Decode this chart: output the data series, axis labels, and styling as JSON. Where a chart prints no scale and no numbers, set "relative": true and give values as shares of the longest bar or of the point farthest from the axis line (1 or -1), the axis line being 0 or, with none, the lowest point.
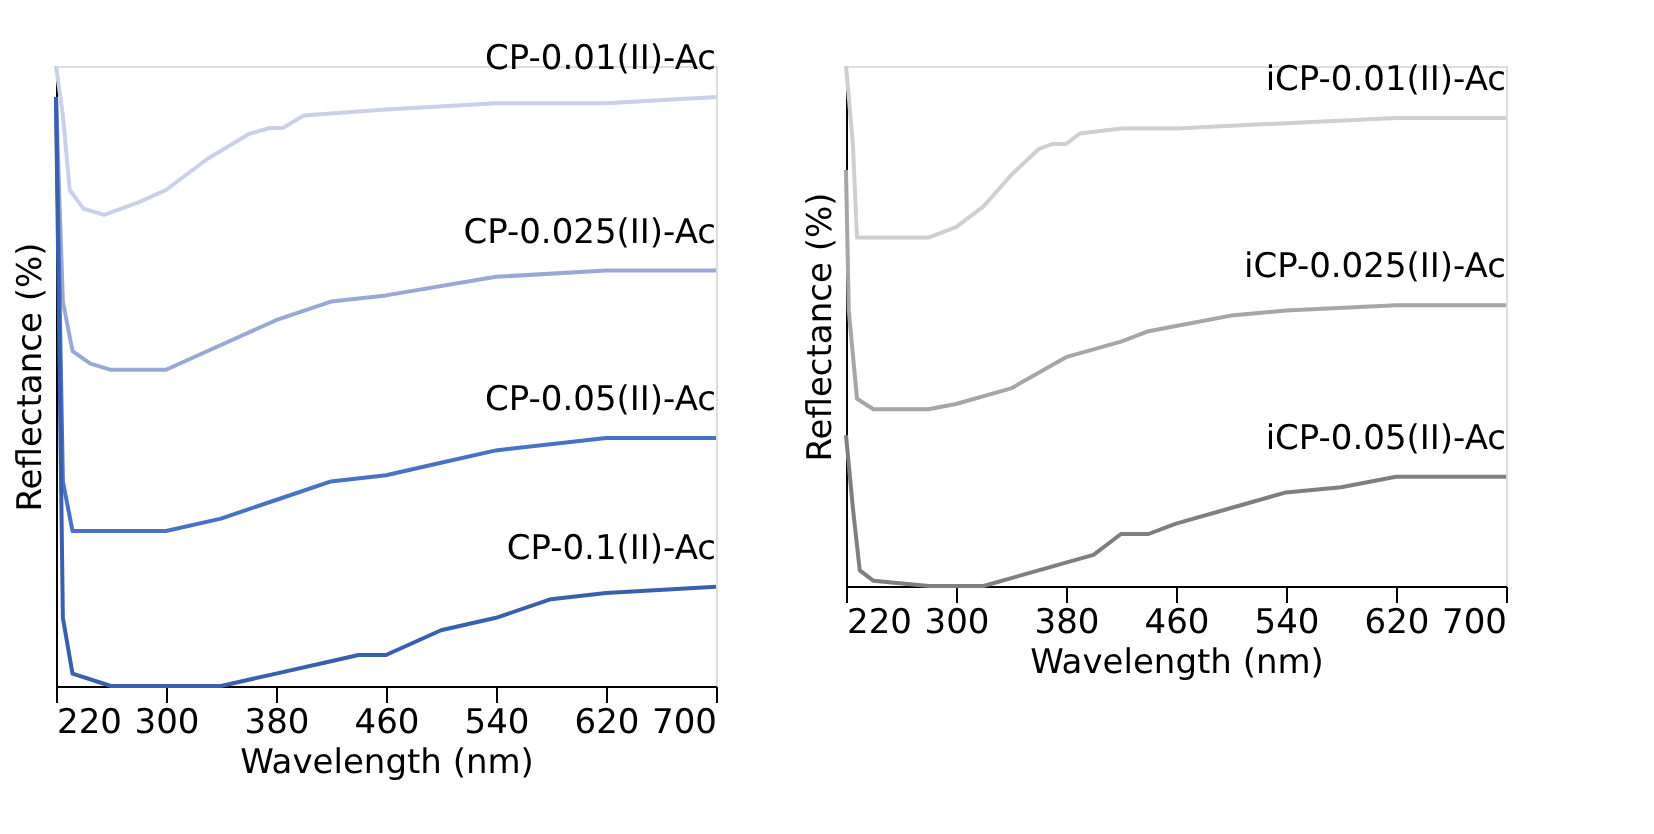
{
  "chart_data": [
    {
      "type": "line",
      "relative": true,
      "xlabel": "Wavelength (nm)",
      "ylabel": "Reflectance (%)",
      "xlim": [
        220,
        700
      ],
      "xticks": [
        220,
        300,
        380,
        460,
        540,
        620,
        700
      ],
      "tick_labels": "x",
      "grid": false,
      "legend": false,
      "line_style": "solid",
      "marker": "none",
      "series": [
        {
          "name": "CP-0.01(II)-Ac",
          "color": "#c9d0e8",
          "x": [
            220,
            225,
            230,
            240,
            255,
            280,
            300,
            330,
            360,
            375,
            385,
            400,
            460,
            540,
            620,
            700
          ],
          "values": [
            1.0,
            0.92,
            0.8,
            0.77,
            0.76,
            0.78,
            0.8,
            0.85,
            0.89,
            0.9,
            0.9,
            0.92,
            0.93,
            0.94,
            0.94,
            0.95
          ]
        },
        {
          "name": "CP-0.025(II)-Ac",
          "color": "#9aa8d6",
          "x": [
            220,
            225,
            232,
            245,
            260,
            300,
            340,
            380,
            420,
            460,
            540,
            620,
            700
          ],
          "values": [
            0.95,
            0.62,
            0.54,
            0.52,
            0.51,
            0.51,
            0.55,
            0.59,
            0.62,
            0.63,
            0.66,
            0.67,
            0.67
          ]
        },
        {
          "name": "CP-0.05(II)-Ac",
          "color": "#4a72c4",
          "x": [
            220,
            225,
            232,
            260,
            300,
            340,
            380,
            420,
            460,
            500,
            540,
            620,
            700
          ],
          "values": [
            0.95,
            0.33,
            0.25,
            0.25,
            0.25,
            0.27,
            0.3,
            0.33,
            0.34,
            0.36,
            0.38,
            0.4,
            0.4
          ]
        },
        {
          "name": "CP-0.1(II)-Ac",
          "color": "#3a5fae",
          "x": [
            220,
            225,
            232,
            260,
            300,
            340,
            380,
            420,
            440,
            460,
            500,
            540,
            580,
            620,
            700
          ],
          "values": [
            0.95,
            0.11,
            0.02,
            0.0,
            0.0,
            0.0,
            0.02,
            0.04,
            0.05,
            0.05,
            0.09,
            0.11,
            0.14,
            0.15,
            0.16
          ]
        }
      ]
    },
    {
      "type": "line",
      "relative": true,
      "xlabel": "Wavelength (nm)",
      "ylabel": "Reflectance (%)",
      "xlim": [
        220,
        700
      ],
      "xticks": [
        220,
        300,
        380,
        460,
        540,
        620,
        700
      ],
      "tick_labels": "x",
      "grid": false,
      "legend": false,
      "line_style": "solid",
      "marker": "none",
      "series": [
        {
          "name": "iCP-0.01(II)-Ac",
          "color": "#cfcfcf",
          "x": [
            220,
            225,
            228,
            240,
            280,
            300,
            320,
            340,
            360,
            370,
            380,
            390,
            420,
            460,
            540,
            620,
            700
          ],
          "values": [
            1.0,
            0.85,
            0.67,
            0.67,
            0.67,
            0.69,
            0.73,
            0.79,
            0.84,
            0.85,
            0.85,
            0.87,
            0.88,
            0.88,
            0.89,
            0.9,
            0.9
          ]
        },
        {
          "name": "iCP-0.025(II)-Ac",
          "color": "#a6a6a6",
          "x": [
            220,
            222,
            228,
            240,
            280,
            300,
            340,
            380,
            420,
            440,
            460,
            500,
            540,
            620,
            700
          ],
          "values": [
            0.8,
            0.53,
            0.36,
            0.34,
            0.34,
            0.35,
            0.38,
            0.44,
            0.47,
            0.49,
            0.5,
            0.52,
            0.53,
            0.54,
            0.54
          ]
        },
        {
          "name": "iCP-0.05(II)-Ac",
          "color": "#7f7f7f",
          "x": [
            220,
            225,
            230,
            240,
            280,
            320,
            360,
            400,
            420,
            440,
            460,
            500,
            540,
            580,
            620,
            700
          ],
          "values": [
            0.29,
            0.15,
            0.03,
            0.01,
            0.0,
            0.0,
            0.03,
            0.06,
            0.1,
            0.1,
            0.12,
            0.15,
            0.18,
            0.19,
            0.21,
            0.21
          ]
        }
      ]
    }
  ]
}
